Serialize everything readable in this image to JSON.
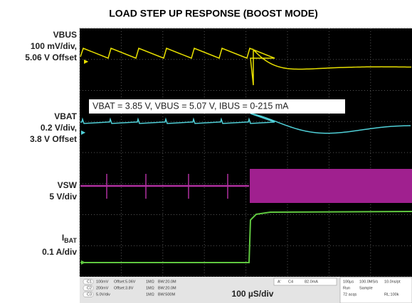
{
  "title": "LOAD STEP UP RESPONSE (BOOST MODE)",
  "channels": [
    {
      "lines": [
        "VBUS",
        "100 mV/div,",
        "5.06 V Offset"
      ]
    },
    {
      "lines": [
        "VBAT",
        "0.2 V/div,",
        "3.8 V Offset"
      ]
    },
    {
      "lines": [
        "VSW",
        "5 V/div"
      ]
    },
    {
      "name": "I",
      "sub": "BAT",
      "lines": [
        "0.1 A/div"
      ]
    }
  ],
  "annotation": "VBAT = 3.85 V, VBUS = 5.07 V, IBUS = 0-215 mA",
  "timebase": "100 µS/div",
  "status": {
    "channels": [
      [
        "C1",
        "100mV",
        "Offset:5.06V",
        "1MΩ",
        "BW:20.0M"
      ],
      [
        "C2",
        "200mV",
        "Offset:3.8V",
        "1MΩ",
        "BW:20.0M"
      ],
      [
        "C3",
        "5.0V/div",
        "",
        "1MΩ",
        "BW:500M"
      ]
    ],
    "trigger": [
      "A'",
      "C4",
      "82.0mA"
    ],
    "acq": [
      [
        "100µs",
        "100.0MS/s",
        "10.0ns/pt"
      ],
      [
        "Run",
        "Sample",
        ""
      ],
      [
        "72 acqs",
        "",
        "RL:100k"
      ]
    ]
  }
}
